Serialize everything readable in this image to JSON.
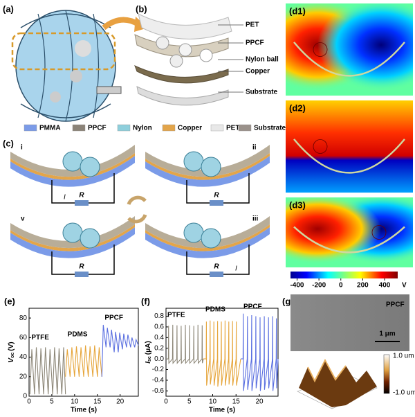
{
  "panels": {
    "a": {
      "label": "(a)"
    },
    "b": {
      "label": "(b)",
      "layers": [
        "PET",
        "PPCF",
        "Nylon ball",
        "Copper",
        "Substrate"
      ]
    },
    "legend": [
      {
        "name": "PMMA",
        "color": "#7b9be8"
      },
      {
        "name": "PPCF",
        "color": "#8b8378"
      },
      {
        "name": "Nylon",
        "color": "#8ecfdc"
      },
      {
        "name": "Copper",
        "color": "#e3a54a"
      },
      {
        "name": "PET",
        "color": "#e8e8e8"
      },
      {
        "name": "Substrate",
        "color": "#9a918a"
      }
    ],
    "c": {
      "label": "(c)",
      "stages": [
        "i",
        "ii",
        "v",
        "iii"
      ],
      "resistor": "R",
      "current": "I"
    },
    "d": {
      "labels": [
        "(d1)",
        "(d2)",
        "(d3)"
      ],
      "colorbar": {
        "ticks": [
          -400,
          -200,
          0,
          200,
          400
        ],
        "lim": [
          -460,
          520
        ],
        "unit": "V"
      }
    },
    "g": {
      "label": "(g)",
      "sem_label": "PPCF",
      "scale": "1 μm",
      "afm_max": "1.0 um",
      "afm_min": "-1.0 um"
    }
  },
  "chart_data": [
    {
      "type": "line",
      "label": "(e)",
      "y_label": {
        "main": "V",
        "sub": "oc",
        "unit": "(V)"
      },
      "x_label": "Time (s)",
      "xlim": [
        0,
        24
      ],
      "xticks": [
        0,
        5,
        10,
        15,
        20
      ],
      "ylim": [
        0,
        90
      ],
      "yticks": [
        0,
        20,
        40,
        60,
        80
      ],
      "series": [
        {
          "name": "PTFE",
          "color": "#8c8677",
          "x": [
            0.2,
            0.6,
            1.2,
            1.6,
            2.2,
            2.6,
            3.2,
            3.6,
            4.2,
            4.6,
            5.2,
            5.6,
            6.2,
            6.6,
            7.2,
            7.6,
            8.0
          ],
          "values": [
            2,
            48,
            2,
            50,
            2,
            49,
            2,
            50,
            2,
            48,
            2,
            50,
            2,
            49,
            2,
            50,
            2
          ]
        },
        {
          "name": "PDMS",
          "color": "#e6a53a",
          "x": [
            8.0,
            8.4,
            9.0,
            9.4,
            10.0,
            10.4,
            11.0,
            11.4,
            12.0,
            12.4,
            13.0,
            13.4,
            14.0,
            14.4,
            15.0,
            15.4,
            16.0
          ],
          "values": [
            20,
            48,
            20,
            50,
            20,
            51,
            20,
            50,
            20,
            52,
            20,
            51,
            20,
            52,
            20,
            50,
            20
          ]
        },
        {
          "name": "PPCF",
          "color": "#5a6fe0",
          "x": [
            16.0,
            16.3,
            16.9,
            17.2,
            17.8,
            18.1,
            18.7,
            19.0,
            19.6,
            19.9,
            20.5,
            20.8,
            21.4,
            21.7,
            22.3,
            22.6,
            23.2,
            23.5,
            24.0
          ],
          "values": [
            20,
            73,
            50,
            70,
            50,
            68,
            45,
            66,
            45,
            65,
            48,
            64,
            50,
            63,
            50,
            60,
            50,
            58,
            52
          ]
        }
      ]
    },
    {
      "type": "line",
      "label": "(f)",
      "y_label": {
        "main": "I",
        "sub": "sc",
        "unit": "(μA)"
      },
      "x_label": "Time (s)",
      "xlim": [
        0,
        24
      ],
      "xticks": [
        0,
        5,
        10,
        15,
        20
      ],
      "ylim": [
        -0.7,
        0.95
      ],
      "yticks": [
        0.8,
        0.6,
        0.4,
        0.2,
        {
          "value": 0,
          "label": "0.0"
        },
        -0.2,
        -0.4,
        -0.6
      ],
      "series": [
        {
          "name": "PTFE",
          "color": "#8c8677",
          "x": [
            0,
            0.5,
            0.55,
            0.6,
            1.4,
            1.45,
            1.5,
            2.3,
            2.35,
            2.4,
            3.2,
            3.25,
            3.3,
            4.1,
            4.15,
            4.2,
            5.0,
            5.05,
            5.1,
            5.9,
            5.95,
            6.0,
            6.8,
            6.85,
            6.9,
            7.7,
            7.75,
            7.8,
            8.0
          ],
          "values": [
            0,
            0,
            0.62,
            -0.08,
            0,
            0.64,
            -0.08,
            0,
            0.63,
            -0.08,
            0,
            0.62,
            -0.08,
            0,
            0.64,
            -0.08,
            0,
            0.63,
            -0.08,
            0,
            0.62,
            -0.08,
            0,
            0.64,
            -0.08,
            0,
            0.63,
            -0.08,
            0
          ]
        },
        {
          "name": "PDMS",
          "color": "#e6a53a",
          "x": [
            8.0,
            8.6,
            8.65,
            8.7,
            9.4,
            9.45,
            9.5,
            10.2,
            10.25,
            10.3,
            11.0,
            11.05,
            11.1,
            11.8,
            11.85,
            11.9,
            12.6,
            12.65,
            12.7,
            13.4,
            13.45,
            13.5,
            14.2,
            14.25,
            14.3,
            15.0,
            15.05,
            15.1,
            16.0
          ],
          "values": [
            0,
            0,
            0.7,
            -0.5,
            0,
            0.72,
            -0.48,
            0,
            0.7,
            -0.5,
            0,
            0.71,
            -0.52,
            0,
            0.7,
            -0.5,
            0,
            0.72,
            -0.5,
            0,
            0.7,
            -0.48,
            0,
            0.71,
            -0.5,
            0,
            0.7,
            -0.5,
            0
          ]
        },
        {
          "name": "PPCF",
          "color": "#5a6fe0",
          "x": [
            16.0,
            16.5,
            16.55,
            16.6,
            17.4,
            17.45,
            17.5,
            18.3,
            18.35,
            18.4,
            19.2,
            19.25,
            19.3,
            20.1,
            20.15,
            20.2,
            21.0,
            21.05,
            21.1,
            21.9,
            21.95,
            22.0,
            22.8,
            22.85,
            22.9,
            23.6,
            23.65,
            23.7,
            24.0
          ],
          "values": [
            0,
            0,
            0.85,
            -0.6,
            0,
            0.8,
            -0.58,
            0,
            0.82,
            -0.6,
            0,
            0.8,
            -0.55,
            0,
            0.78,
            -0.6,
            0,
            0.8,
            -0.58,
            0,
            0.78,
            -0.55,
            0,
            0.8,
            -0.6,
            0,
            0.76,
            -0.55,
            0
          ]
        }
      ]
    }
  ]
}
